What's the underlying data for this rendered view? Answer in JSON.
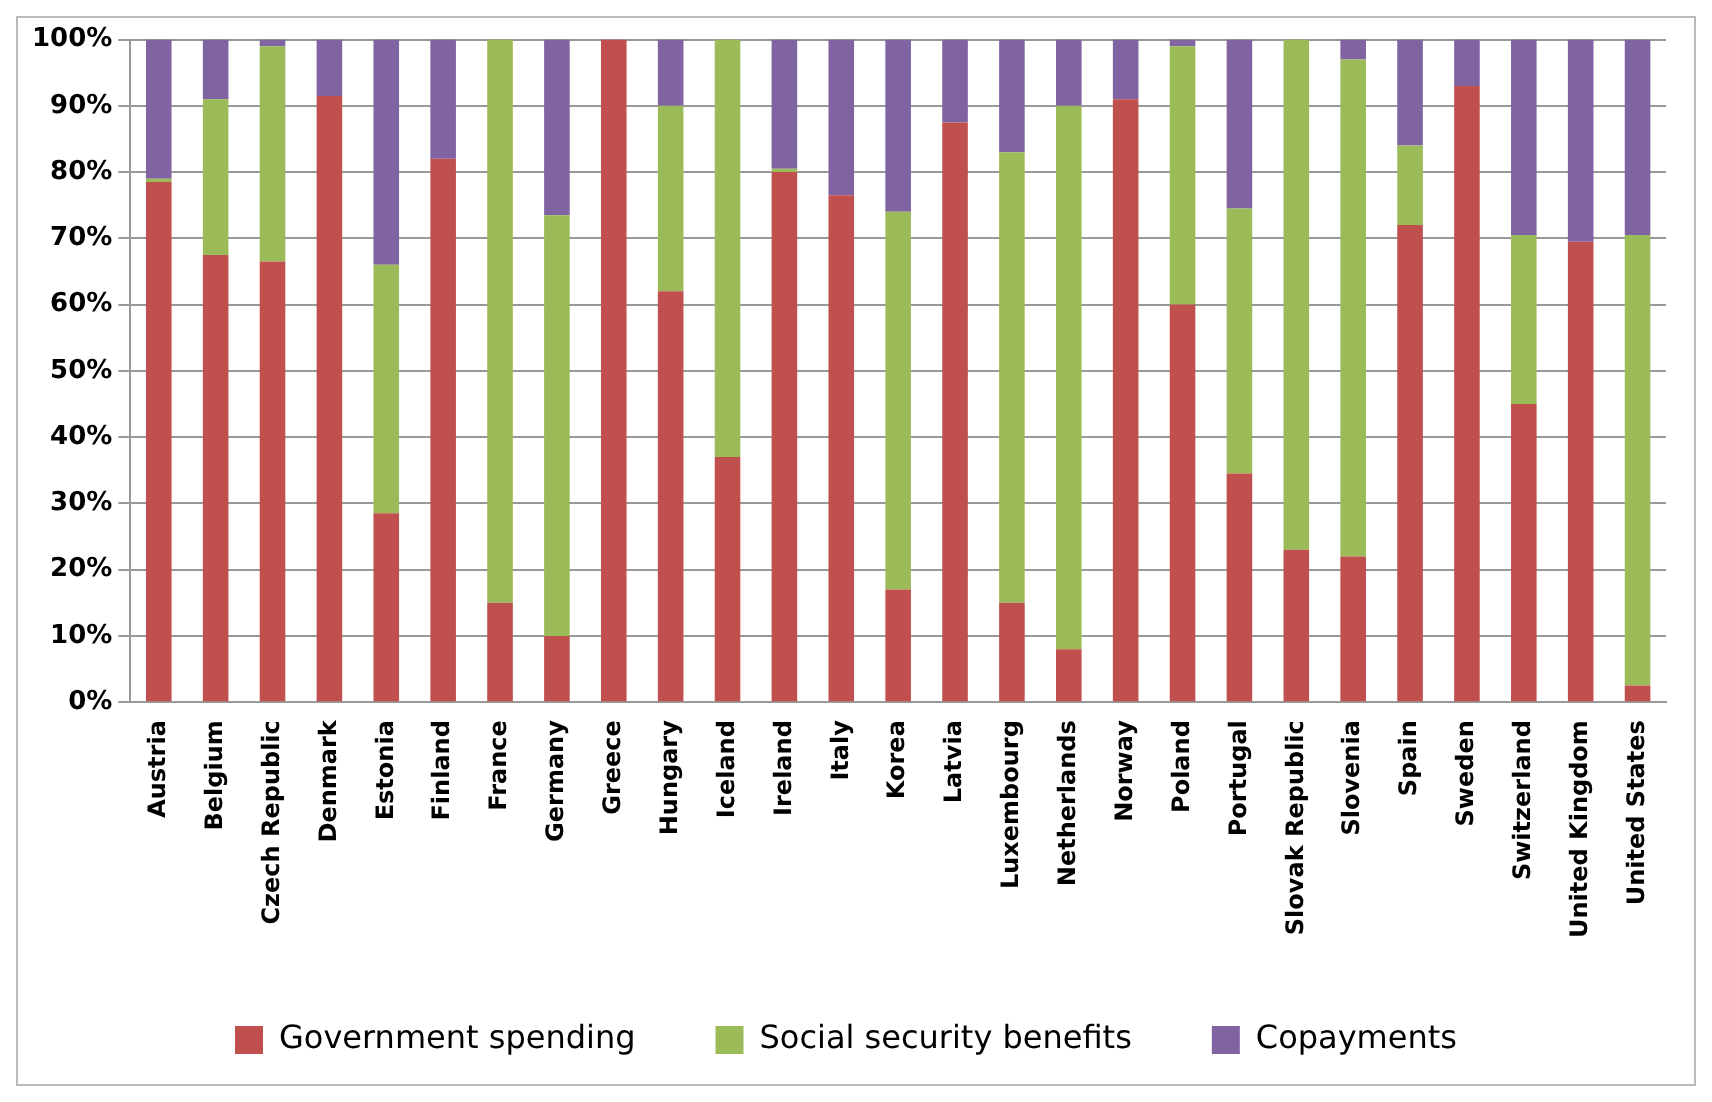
{
  "chart_data": {
    "type": "bar",
    "stacked": true,
    "legend": "bottom",
    "grid": "y",
    "categories": [
      "Austria",
      "Belgium",
      "Czech Republic",
      "Denmark",
      "Estonia",
      "Finland",
      "France",
      "Germany",
      "Greece",
      "Hungary",
      "Iceland",
      "Ireland",
      "Italy",
      "Korea",
      "Latvia",
      "Luxembourg",
      "Netherlands",
      "Norway",
      "Poland",
      "Portugal",
      "Slovak Republic",
      "Slovenia",
      "Spain",
      "Sweden",
      "Switzerland",
      "United Kingdom",
      "United States"
    ],
    "series": [
      {
        "name": "Government spending",
        "color": "#c0504d",
        "values": [
          78.5,
          67.5,
          66.5,
          91.5,
          28.5,
          82,
          15,
          10,
          100,
          62,
          37,
          80,
          76.5,
          17,
          87.5,
          15,
          8,
          91,
          60,
          34.5,
          23,
          22,
          72,
          93,
          45,
          69.5,
          2.5
        ]
      },
      {
        "name": "Social security benefits",
        "color": "#9bbb59",
        "values": [
          0.5,
          23.5,
          32.5,
          0,
          37.5,
          0,
          85,
          63.5,
          0,
          28,
          63,
          0.5,
          0,
          57,
          0,
          68,
          82,
          0,
          39,
          40,
          77,
          75,
          12,
          0,
          25.5,
          0,
          68
        ]
      },
      {
        "name": "Copayments",
        "color": "#8064a2",
        "values": [
          21,
          9,
          1,
          8.5,
          34,
          18,
          0,
          26.5,
          0,
          10,
          0,
          19.5,
          23.5,
          26,
          12.5,
          17,
          10,
          9,
          1,
          25.5,
          0,
          3,
          16,
          7,
          29.5,
          30.5,
          29.5
        ]
      }
    ],
    "ylim": [
      0,
      100
    ],
    "yticks": [
      {
        "value": 0,
        "label": "0%"
      },
      {
        "value": 10,
        "label": "10%"
      },
      {
        "value": 20,
        "label": "20%"
      },
      {
        "value": 30,
        "label": "30%"
      },
      {
        "value": 40,
        "label": "40%"
      },
      {
        "value": 50,
        "label": "50%"
      },
      {
        "value": 60,
        "label": "60%"
      },
      {
        "value": 70,
        "label": "70%"
      },
      {
        "value": 80,
        "label": "80%"
      },
      {
        "value": 90,
        "label": "90%"
      },
      {
        "value": 100,
        "label": "100%"
      }
    ]
  }
}
